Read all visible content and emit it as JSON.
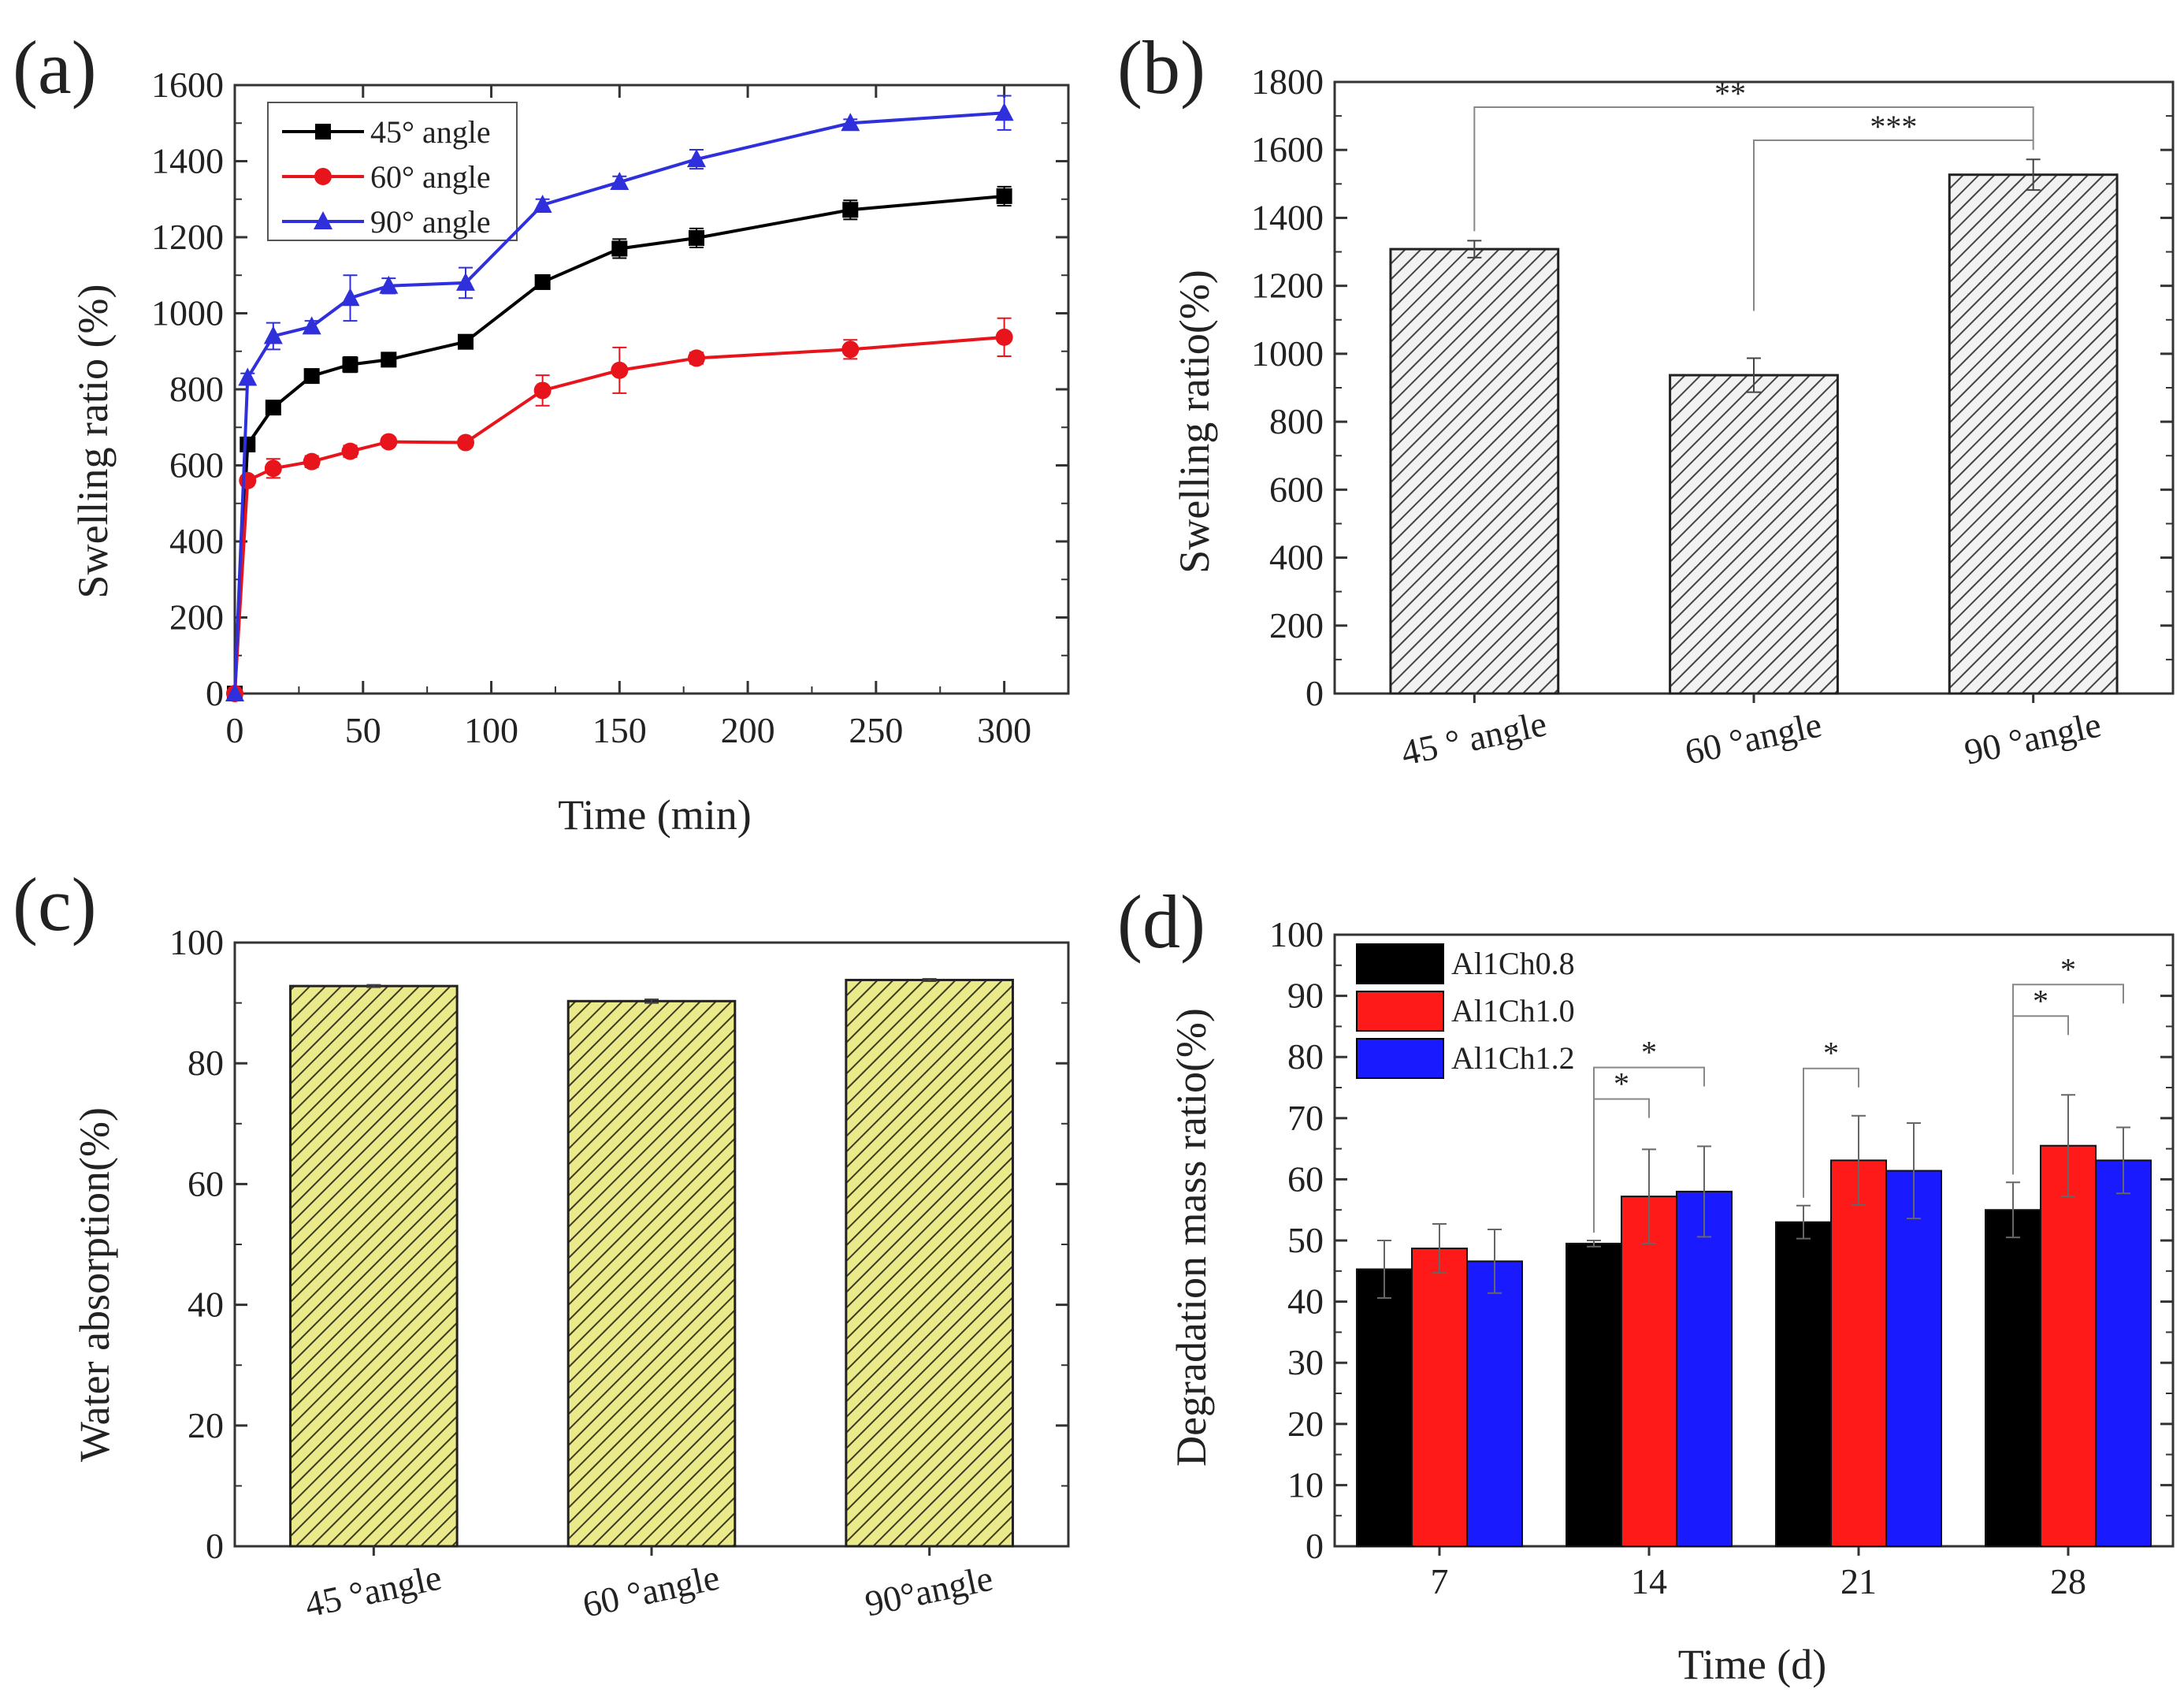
{
  "chart_data": [
    {
      "panel": "(a)",
      "type": "line",
      "xlabel": "Time (min)",
      "ylabel": "Swelling ratio (%)",
      "xlim": [
        0,
        325
      ],
      "ylim": [
        0,
        1600
      ],
      "xticks": [
        0,
        50,
        100,
        150,
        200,
        250,
        300
      ],
      "yticks": [
        0,
        200,
        400,
        600,
        800,
        1000,
        1200,
        1400,
        1600
      ],
      "legend_position": "top-left",
      "x": [
        0,
        5,
        15,
        30,
        45,
        60,
        90,
        120,
        150,
        180,
        240,
        300
      ],
      "series": [
        {
          "name": "45° angle",
          "color": "#000000",
          "marker": "square",
          "values": [
            0,
            655,
            752,
            835,
            865,
            878,
            925,
            1082,
            1170,
            1198,
            1272,
            1308
          ],
          "errors": [
            0,
            15,
            15,
            15,
            20,
            15,
            12,
            15,
            25,
            25,
            25,
            25
          ]
        },
        {
          "name": "60° angle",
          "color": "#e8141b",
          "marker": "circle",
          "values": [
            0,
            560,
            592,
            610,
            637,
            662,
            660,
            797,
            850,
            882,
            905,
            937
          ],
          "errors": [
            0,
            12,
            25,
            15,
            15,
            12,
            12,
            40,
            60,
            15,
            25,
            50
          ]
        },
        {
          "name": "90° angle",
          "color": "#2f2fdc",
          "marker": "triangle",
          "values": [
            0,
            830,
            940,
            965,
            1040,
            1072,
            1080,
            1285,
            1345,
            1405,
            1500,
            1527
          ],
          "errors": [
            0,
            12,
            35,
            15,
            60,
            20,
            40,
            15,
            15,
            25,
            10,
            45
          ]
        }
      ]
    },
    {
      "panel": "(b)",
      "type": "bar",
      "ylabel": "Swelling ratio(%)",
      "ylim": [
        0,
        1800
      ],
      "yticks": [
        0,
        200,
        400,
        600,
        800,
        1000,
        1200,
        1400,
        1600,
        1800
      ],
      "categories": [
        "45 ° angle",
        "60 °angle",
        "90 °angle"
      ],
      "values": [
        1308,
        937,
        1527
      ],
      "errors": [
        25,
        50,
        45
      ],
      "fill_pattern": "diagonal-hatch-gray",
      "significance": [
        {
          "from": 0,
          "to": 2,
          "label": "**"
        },
        {
          "from": 1,
          "to": 2,
          "label": "***"
        }
      ]
    },
    {
      "panel": "(c)",
      "type": "bar",
      "ylabel": "Water absorption(%)",
      "ylim": [
        0,
        100
      ],
      "yticks": [
        0,
        20,
        40,
        60,
        80,
        100
      ],
      "categories": [
        "45 °angle",
        "60 °angle",
        "90°angle"
      ],
      "values": [
        92.8,
        90.3,
        93.8
      ],
      "errors": [
        0.2,
        0.3,
        0.2
      ],
      "fill_pattern": "diagonal-hatch-olive"
    },
    {
      "panel": "(d)",
      "type": "bar",
      "xlabel": "Time (d)",
      "ylabel": "Degradation mass ratio(%)",
      "ylim": [
        0,
        100
      ],
      "yticks": [
        0,
        10,
        20,
        30,
        40,
        50,
        60,
        70,
        80,
        90,
        100
      ],
      "categories": [
        "7",
        "14",
        "21",
        "28"
      ],
      "legend_position": "top-left",
      "series": [
        {
          "name": "Al1Ch0.8",
          "color": "#000000",
          "values": [
            45.3,
            49.5,
            53.0,
            55.0
          ],
          "errors": [
            4.7,
            0.5,
            2.7,
            4.5
          ]
        },
        {
          "name": "Al1Ch1.0",
          "color": "#ff1a1a",
          "values": [
            48.7,
            57.2,
            63.1,
            65.5
          ],
          "errors": [
            4.0,
            7.7,
            7.3,
            8.3
          ]
        },
        {
          "name": "Al1Ch1.2",
          "color": "#1a1aff",
          "values": [
            46.6,
            58.0,
            61.4,
            63.1
          ],
          "errors": [
            5.2,
            7.4,
            7.8,
            5.4
          ]
        }
      ],
      "significance": [
        {
          "category": 1,
          "from": 0,
          "to": 1,
          "label": "*"
        },
        {
          "category": 1,
          "from": 0,
          "to": 2,
          "label": "*"
        },
        {
          "category": 2,
          "from": 0,
          "to": 1,
          "label": "*"
        },
        {
          "category": 3,
          "from": 0,
          "to": 1,
          "label": "*"
        },
        {
          "category": 3,
          "from": 0,
          "to": 2,
          "label": "*"
        }
      ]
    }
  ]
}
